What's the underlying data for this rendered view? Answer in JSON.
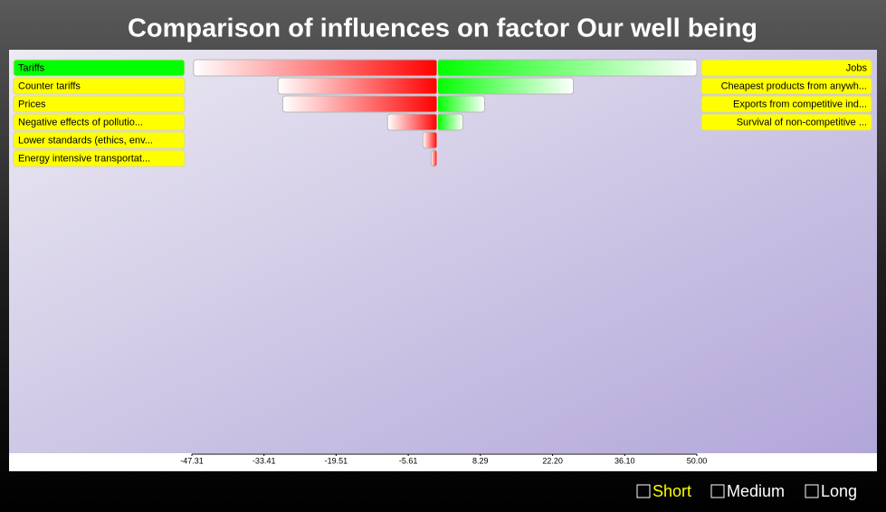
{
  "chart_data": {
    "type": "tornado",
    "title": "Comparison of influences on factor Our well being",
    "left": {
      "labels": [
        "Tariffs",
        "Counter tariffs",
        "Prices",
        "Negative effects of pollutio...",
        "Lower standards (ethics, env...",
        "Energy intensive transportat..."
      ],
      "values": [
        -47,
        -30.7,
        -29.8,
        -9.6,
        -2.8,
        -1.2
      ],
      "color": "#ff0000"
    },
    "right": {
      "labels": [
        "Jobs",
        "Cheapest products from anywh...",
        "Exports from competitive ind...",
        "Survival of non-competitive ..."
      ],
      "values": [
        50,
        26.2,
        9.1,
        4.9
      ],
      "color": "#00ff00"
    },
    "highlighted": 0,
    "xlim": [
      -47.31,
      50
    ],
    "xticks": [
      -47.31,
      -33.41,
      -19.51,
      -5.61,
      8.29,
      {
        "value": 22.2,
        "label": "22.20"
      },
      {
        "value": 36.1,
        "label": "36.10"
      },
      {
        "value": 50,
        "label": "50.00"
      }
    ]
  },
  "controls": {
    "options": [
      "Short",
      "Medium",
      "Long"
    ],
    "selected": 0
  }
}
